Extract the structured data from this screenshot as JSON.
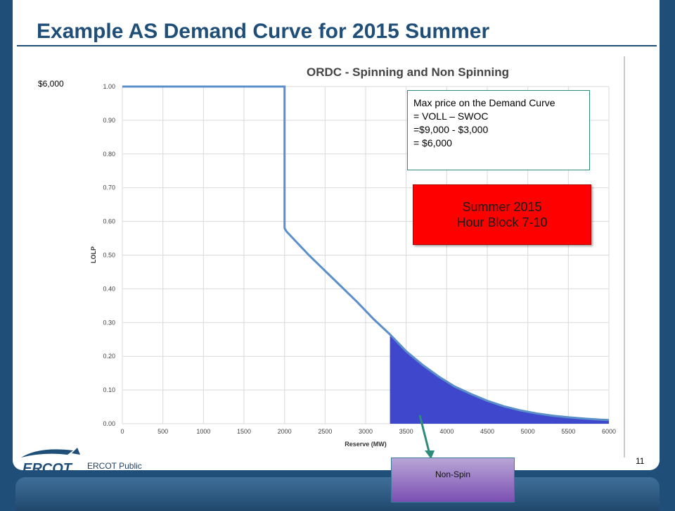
{
  "slide": {
    "title": "Example AS Demand Curve for 2015 Summer",
    "price_label": "$6,000",
    "footer_label": "ERCOT Public",
    "page_number": "11",
    "logo_text": "ERCOT"
  },
  "annotation": {
    "lines": [
      "Max price on the Demand Curve",
      "= VOLL – SWOC",
      "=$9,000 - $3,000",
      "= $6,000"
    ]
  },
  "season_box": {
    "line1": "Summer 2015",
    "line2": "Hour Block 7-10"
  },
  "callout": {
    "label": "Non-Spin"
  },
  "colors": {
    "brand": "#1f4e79",
    "curve": "#5b8fc9",
    "shaded": "#3f48cc",
    "red_box": "#ff0000",
    "arrow": "#2e8b7a"
  },
  "chart_data": {
    "type": "line",
    "title": "ORDC - Spinning and Non Spinning",
    "xlabel": "Reserve (MW)",
    "ylabel": "LOLP",
    "xlim": [
      0,
      6000
    ],
    "ylim": [
      0,
      1.0
    ],
    "x_ticks": [
      "0",
      "500",
      "1000",
      "1500",
      "2000",
      "2500",
      "3000",
      "3500",
      "4000",
      "4500",
      "5000",
      "5500",
      "6000"
    ],
    "y_ticks": [
      "0.00",
      "0.10",
      "0.20",
      "0.30",
      "0.40",
      "0.50",
      "0.60",
      "0.70",
      "0.80",
      "0.90",
      "1.00"
    ],
    "grid": true,
    "series": [
      {
        "x": [
          0,
          2000,
          2000,
          2025,
          2300,
          2600,
          2900,
          3100,
          3300,
          3500,
          3700,
          3900,
          4100,
          4300,
          4500,
          4700,
          4900,
          5100,
          5300,
          5500,
          5700,
          5900,
          6000
        ],
        "y": [
          1.0,
          1.0,
          0.58,
          0.57,
          0.5,
          0.43,
          0.36,
          0.31,
          0.265,
          0.215,
          0.175,
          0.14,
          0.11,
          0.088,
          0.068,
          0.052,
          0.04,
          0.031,
          0.024,
          0.019,
          0.015,
          0.012,
          0.011
        ]
      }
    ],
    "shaded_region": {
      "x_from": 3300,
      "x_to": 6000
    }
  }
}
